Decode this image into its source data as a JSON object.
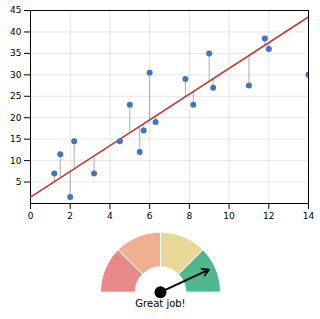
{
  "chart_data": {
    "type": "scatter",
    "x": [
      1.2,
      1.5,
      2.0,
      2.2,
      3.2,
      4.5,
      5.0,
      5.5,
      5.7,
      6.0,
      6.3,
      7.8,
      8.2,
      9.0,
      9.2,
      11.0,
      11.8,
      12.0,
      14.0
    ],
    "values": [
      7.0,
      11.5,
      1.5,
      14.5,
      7.0,
      14.5,
      23.0,
      12.0,
      17.0,
      30.5,
      19.0,
      29.0,
      23.0,
      35.0,
      27.0,
      27.5,
      38.5,
      36.0,
      30.0
    ],
    "color": "#4472C4",
    "fit": {
      "slope": 3.0,
      "intercept": 1.5,
      "color": "#C0392B",
      "residual_color": "#999999"
    },
    "xlim": [
      0,
      14
    ],
    "ylim": [
      0,
      45
    ],
    "xticks": [
      0,
      2,
      4,
      6,
      8,
      10,
      12,
      14
    ],
    "yticks": [
      5,
      10,
      15,
      20,
      25,
      30,
      35,
      40,
      45
    ],
    "grid": true,
    "gauge": {
      "colors": [
        "#e8888a",
        "#f0b090",
        "#e8d898",
        "#50b890"
      ],
      "needle_angle": 25,
      "label": "Great job!"
    }
  }
}
